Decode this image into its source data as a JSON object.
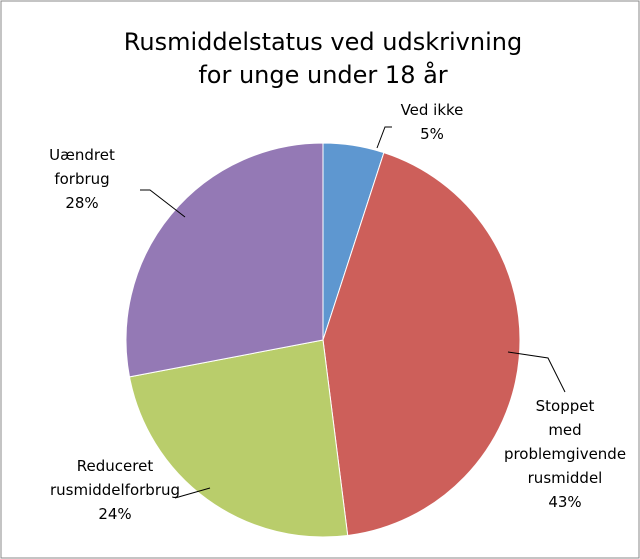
{
  "chart_data": {
    "type": "pie",
    "title": [
      "Rusmiddelstatus ved udskrivning",
      "for unge under 18 år"
    ],
    "categories": [
      [
        "Ved ikke"
      ],
      [
        "Stoppet",
        "med",
        "problemgivende",
        "rusmiddel"
      ],
      [
        "Reduceret",
        "rusmiddelforbrug"
      ],
      [
        "Uændret",
        "forbrug"
      ]
    ],
    "values": [
      5,
      43,
      24,
      28
    ],
    "value_labels": [
      "5%",
      "43%",
      "24%",
      "28%"
    ],
    "colors": [
      "#5e97d0",
      "#cd5f5a",
      "#b9cd6b",
      "#9479b5"
    ]
  }
}
